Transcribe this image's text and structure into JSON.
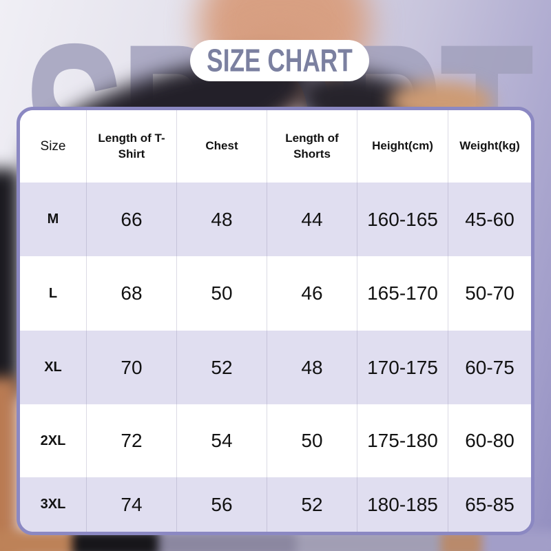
{
  "watermark_text": "SPORT",
  "chart_data": {
    "type": "table",
    "title": "SIZE CHART",
    "columns": [
      "Size",
      "Length of T-Shirt",
      "Chest",
      "Length of Shorts",
      "Height(cm)",
      "Weight(kg)"
    ],
    "rows": [
      [
        "M",
        "66",
        "48",
        "44",
        "160-165",
        "45-60"
      ],
      [
        "L",
        "68",
        "50",
        "46",
        "165-170",
        "50-70"
      ],
      [
        "XL",
        "70",
        "52",
        "48",
        "170-175",
        "60-75"
      ],
      [
        "2XL",
        "72",
        "54",
        "50",
        "175-180",
        "60-80"
      ],
      [
        "3XL",
        "74",
        "56",
        "52",
        "180-185",
        "65-85"
      ]
    ]
  },
  "colors": {
    "table_border": "#8b88c2",
    "row_alternate": "#e0def0",
    "row_plain": "#ffffff",
    "title_text": "#7b80a0",
    "watermark": "#a2a1bd",
    "background_right": "#9a96c4"
  }
}
